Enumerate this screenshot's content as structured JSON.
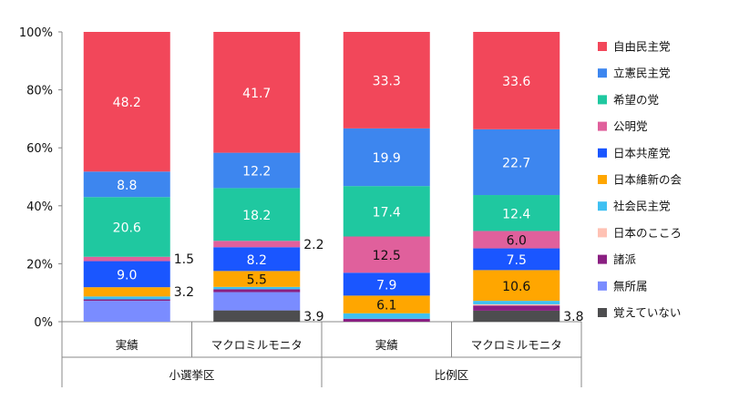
{
  "chart_data": {
    "type": "bar",
    "stacked": true,
    "percent": true,
    "ylim": [
      0,
      100
    ],
    "yticks": [
      "0%",
      "20%",
      "40%",
      "60%",
      "80%",
      "100%"
    ],
    "categories": [
      "実績",
      "マクロミルモニタ",
      "実績",
      "マクロミルモニタ"
    ],
    "groups": [
      {
        "label": "小選挙区",
        "span": 2
      },
      {
        "label": "比例区",
        "span": 2
      }
    ],
    "legend_position": "right",
    "series": [
      {
        "name": "自由民主党",
        "color": "#f2475a",
        "values": [
          48.2,
          41.7,
          33.3,
          33.6
        ],
        "labels": [
          "48.2",
          "41.7",
          "33.3",
          "33.6"
        ],
        "label_color": "#fff"
      },
      {
        "name": "立憲民主党",
        "color": "#3d86ef",
        "values": [
          8.8,
          12.2,
          19.9,
          22.7
        ],
        "labels": [
          "8.8",
          "12.2",
          "19.9",
          "22.7"
        ],
        "label_color": "#fff"
      },
      {
        "name": "希望の党",
        "color": "#1fc8a0",
        "values": [
          20.6,
          18.2,
          17.4,
          12.4
        ],
        "labels": [
          "20.6",
          "18.2",
          "17.4",
          "12.4"
        ],
        "label_color": "#fff"
      },
      {
        "name": "公明党",
        "color": "#e0609c",
        "values": [
          1.5,
          2.2,
          12.5,
          6.0
        ],
        "labels": [
          "1.5",
          "2.2",
          "12.5",
          "6.0"
        ],
        "label_color": "#111",
        "outside": [
          true,
          true,
          false,
          false
        ]
      },
      {
        "name": "日本共産党",
        "color": "#1a56ff",
        "values": [
          9.0,
          8.2,
          7.9,
          7.5
        ],
        "labels": [
          "9.0",
          "8.2",
          "7.9",
          "7.5"
        ],
        "label_color": "#fff"
      },
      {
        "name": "日本維新の会",
        "color": "#ffa600",
        "values": [
          3.2,
          5.5,
          6.1,
          10.6
        ],
        "labels": [
          "3.2",
          "5.5",
          "6.1",
          "10.6"
        ],
        "label_color": "#111",
        "outside": [
          true,
          false,
          false,
          false
        ]
      },
      {
        "name": "社会民主党",
        "color": "#3fc0f2",
        "values": [
          1.0,
          0.8,
          1.9,
          1.2
        ],
        "labels": [
          "",
          "",
          "",
          ""
        ]
      },
      {
        "name": "日本のこころ",
        "color": "#ffc2b4",
        "values": [
          0,
          0,
          0,
          0.4
        ],
        "labels": [
          "",
          "",
          "",
          ""
        ]
      },
      {
        "name": "諸派",
        "color": "#8a1f82",
        "values": [
          0.5,
          1.0,
          1.0,
          1.8
        ],
        "labels": [
          "",
          "",
          "",
          ""
        ]
      },
      {
        "name": "無所属",
        "color": "#7a8cff",
        "values": [
          7.2,
          6.3,
          0,
          0
        ],
        "labels": [
          "",
          "",
          "",
          ""
        ]
      },
      {
        "name": "覚えていない",
        "color": "#4d4d4f",
        "values": [
          0,
          3.9,
          0,
          3.8
        ],
        "labels": [
          "",
          "3.9",
          "",
          "3.8"
        ],
        "label_color": "#111",
        "outside": [
          false,
          true,
          false,
          true
        ]
      }
    ]
  }
}
